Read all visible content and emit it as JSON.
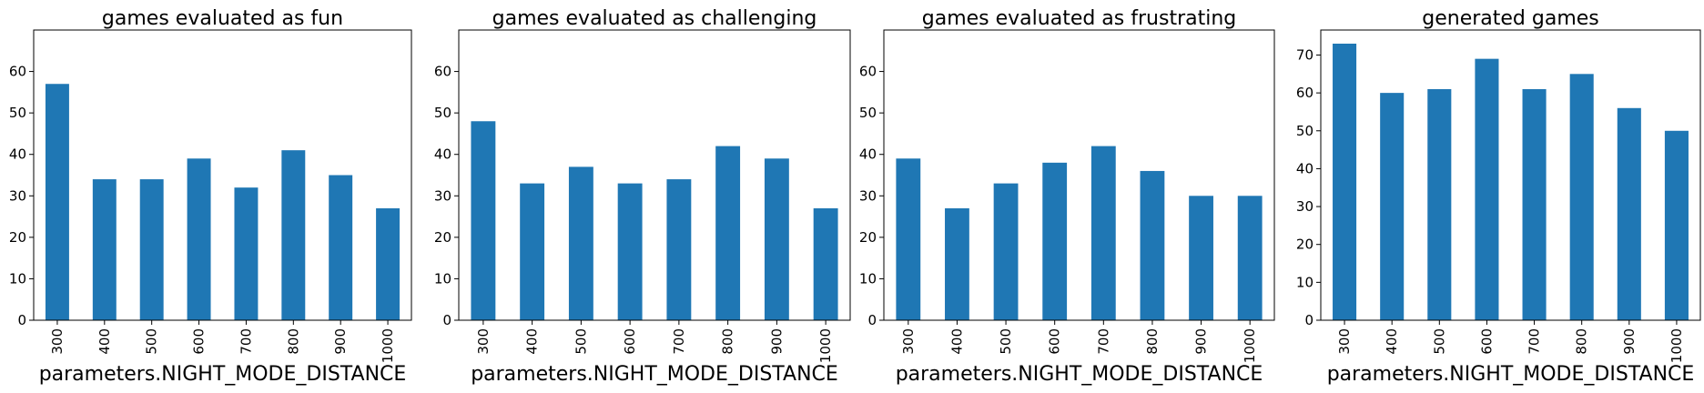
{
  "chart_data": [
    {
      "type": "bar",
      "title": "games evaluated as fun",
      "xlabel": "parameters.NIGHT_MODE_DISTANCE",
      "ylabel": "",
      "categories": [
        "300",
        "400",
        "500",
        "600",
        "700",
        "800",
        "900",
        "1000"
      ],
      "values": [
        57,
        34,
        34,
        39,
        32,
        41,
        35,
        27
      ],
      "ylim": [
        0,
        70
      ],
      "yticks": [
        "0",
        "10",
        "20",
        "30",
        "40",
        "50",
        "60"
      ],
      "color": "#1f77b4",
      "grid": false
    },
    {
      "type": "bar",
      "title": "games evaluated as challenging",
      "xlabel": "parameters.NIGHT_MODE_DISTANCE",
      "ylabel": "",
      "categories": [
        "300",
        "400",
        "500",
        "600",
        "700",
        "800",
        "900",
        "1000"
      ],
      "values": [
        48,
        33,
        37,
        33,
        34,
        42,
        39,
        27
      ],
      "ylim": [
        0,
        70
      ],
      "yticks": [
        "0",
        "10",
        "20",
        "30",
        "40",
        "50",
        "60"
      ],
      "color": "#1f77b4",
      "grid": false
    },
    {
      "type": "bar",
      "title": "games evaluated as frustrating",
      "xlabel": "parameters.NIGHT_MODE_DISTANCE",
      "ylabel": "",
      "categories": [
        "300",
        "400",
        "500",
        "600",
        "700",
        "800",
        "900",
        "1000"
      ],
      "values": [
        39,
        27,
        33,
        38,
        42,
        36,
        30,
        30
      ],
      "ylim": [
        0,
        70
      ],
      "yticks": [
        "0",
        "10",
        "20",
        "30",
        "40",
        "50",
        "60"
      ],
      "color": "#1f77b4",
      "grid": false
    },
    {
      "type": "bar",
      "title": "generated games",
      "xlabel": "parameters.NIGHT_MODE_DISTANCE",
      "ylabel": "",
      "categories": [
        "300",
        "400",
        "500",
        "600",
        "700",
        "800",
        "900",
        "1000"
      ],
      "values": [
        73,
        60,
        61,
        69,
        61,
        65,
        56,
        50
      ],
      "ylim": [
        0,
        76.6
      ],
      "yticks": [
        "0",
        "10",
        "20",
        "30",
        "40",
        "50",
        "60",
        "70"
      ],
      "color": "#1f77b4",
      "grid": false
    }
  ]
}
